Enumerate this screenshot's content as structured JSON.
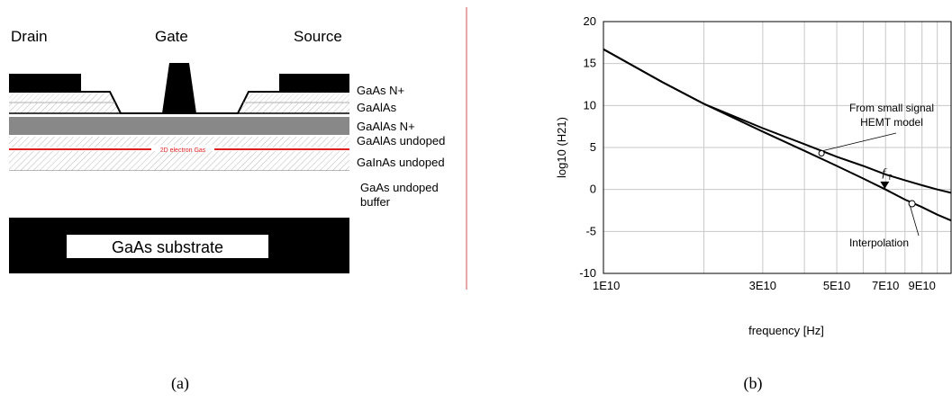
{
  "figure_a": {
    "caption": "(a)",
    "terminals": {
      "drain": "Drain",
      "gate": "Gate",
      "source": "Source"
    },
    "layers": [
      "GaAs N+",
      "GaAlAs",
      "GaAlAs N+",
      "GaAlAs undoped",
      "GaInAs undoped",
      "GaAs undoped",
      "buffer"
    ],
    "electron_gas_label": "2D electron Gas",
    "substrate_label": "GaAs substrate",
    "colors": {
      "metal": "#000000",
      "doped_layer": "#888888",
      "electron_gas": "#e02020",
      "divider": "#d05050"
    }
  },
  "figure_b": {
    "caption": "(b)",
    "chart_data": {
      "type": "line",
      "xlabel": "frequency [Hz]",
      "ylabel": "log10 (H21)",
      "xscale": "log",
      "xlim": [
        10000000000.0,
        110000000000.0
      ],
      "ylim": [
        -10,
        20
      ],
      "grid": true,
      "xticks": [
        {
          "value": 10000000000.0,
          "label": "1E10"
        },
        {
          "value": 30000000000.0,
          "label": "3E10"
        },
        {
          "value": 50000000000.0,
          "label": "5E10"
        },
        {
          "value": 70000000000.0,
          "label": "7E10"
        },
        {
          "value": 90000000000.0,
          "label": "9E10"
        }
      ],
      "yticks": [
        {
          "value": -10,
          "label": "-10"
        },
        {
          "value": -5,
          "label": "-5"
        },
        {
          "value": 0,
          "label": "0"
        },
        {
          "value": 5,
          "label": "5"
        },
        {
          "value": 10,
          "label": "10"
        },
        {
          "value": 15,
          "label": "15"
        },
        {
          "value": 20,
          "label": "20"
        }
      ],
      "series": [
        {
          "x": [
            10000000000.0,
            15000000000.0,
            20000000000.0,
            30000000000.0,
            40000000000.0,
            50000000000.0,
            60000000000.0,
            70000000000.0,
            80000000000.0,
            90000000000.0,
            100000000000.0,
            110000000000.0
          ],
          "y": [
            16.7,
            12.8,
            10.2,
            7.3,
            5.4,
            3.9,
            2.8,
            1.8,
            1.1,
            0.5,
            0.0,
            -0.4
          ]
        },
        {
          "x": [
            10000000000.0,
            15000000000.0,
            20000000000.0,
            30000000000.0,
            40000000000.0,
            50000000000.0,
            60000000000.0,
            70000000000.0,
            80000000000.0,
            90000000000.0,
            100000000000.0,
            110000000000.0
          ],
          "y": [
            16.7,
            12.8,
            10.2,
            6.9,
            4.6,
            2.8,
            1.3,
            0.0,
            -1.2,
            -2.1,
            -3.0,
            -3.7
          ]
        }
      ],
      "annotations": [
        {
          "text_line1": "From small signal",
          "text_line2": "HEMT model",
          "x": 45000000000.0,
          "y": 4.3
        },
        {
          "text": "Interpolation",
          "x": 84000000000.0,
          "y": -1.7
        },
        {
          "text": "f",
          "subscript": "T",
          "x": 69600000000.0,
          "y": 0.3
        }
      ]
    }
  }
}
